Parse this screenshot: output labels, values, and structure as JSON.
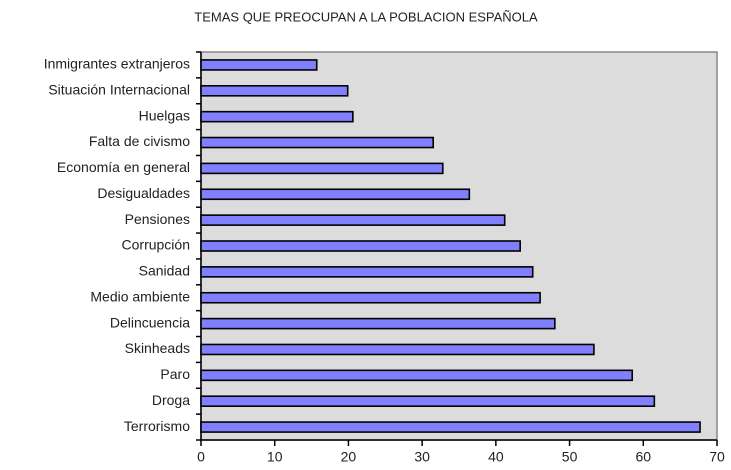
{
  "chart_data": {
    "type": "barh",
    "title": "TEMAS QUE PREOCUPAN A LA POBLACION ESPAÑOLA",
    "categories": [
      "Inmigrantes extranjeros",
      "Situación Internacional",
      "Huelgas",
      "Falta de civismo",
      "Economía en general",
      "Desigualdades",
      "Pensiones",
      "Corrupción",
      "Sanidad",
      "Medio ambiente",
      "Delincuencia",
      "Skinheads",
      "Paro",
      "Droga",
      "Terrorismo"
    ],
    "values": [
      15.7,
      19.9,
      20.6,
      31.5,
      32.8,
      36.4,
      41.2,
      43.3,
      45.0,
      46.0,
      48.0,
      53.3,
      58.5,
      61.5,
      67.7
    ],
    "color": "#8080ff",
    "xlim": [
      0,
      70
    ],
    "xticks": [
      0,
      10,
      20,
      30,
      40,
      50,
      60,
      70
    ],
    "grid": false
  }
}
